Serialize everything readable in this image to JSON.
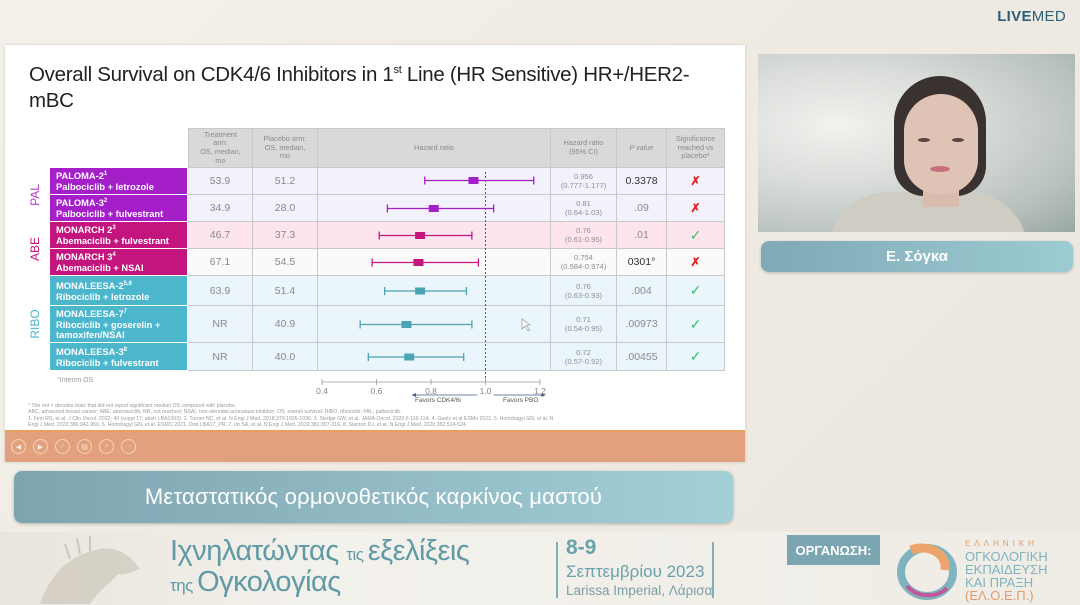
{
  "brand": {
    "bold": "LIVE",
    "regular": "MED"
  },
  "slide": {
    "title_pre": "Overall Survival on CDK4/6 Inhibitors in 1",
    "title_sup": "st",
    "title_post": " Line (HR Sensitive) HR+/HER2-mBC",
    "groups": [
      {
        "label": "PAL",
        "color": "#b43bcb"
      },
      {
        "label": "ABE",
        "color": "#c4157f"
      },
      {
        "label": "RIBO",
        "color": "#4bb6cc"
      }
    ],
    "headers": {
      "treatment": [
        "Treatment",
        "arm:",
        "OS, median,",
        "mo"
      ],
      "placebo": [
        "Placebo arm:",
        "OS, median,",
        "mo"
      ],
      "hazard": "Hazard ratio",
      "hr_ci": [
        "Hazard ratio",
        "(95% CI)"
      ],
      "pvalue": "P value",
      "significance": [
        "Significance",
        "reached vs",
        "placebo*"
      ]
    },
    "rows": [
      {
        "trial": "PALOMA-2",
        "sup": "1",
        "regimen": "Palbociclib + letrozole",
        "treatment": "53.9",
        "placebo": "51.2",
        "hr": "0.956",
        "ci": "(0.777-1.177)",
        "p": "0.3378",
        "significant": false
      },
      {
        "trial": "PALOMA-3",
        "sup": "2",
        "regimen": "Palbociclib + fulvestrant",
        "treatment": "34.9",
        "placebo": "28.0",
        "hr": "0.81",
        "ci": "(0.64-1.03)",
        "p": ".09",
        "significant": false
      },
      {
        "trial": "MONARCH 2",
        "sup": "3",
        "regimen": "Abemaciclib + fulvestrant",
        "treatment": "46.7",
        "placebo": "37.3",
        "hr": "0.76",
        "ci": "(0.61-0.95)",
        "p": ".01",
        "significant": true
      },
      {
        "trial": "MONARCH 3",
        "sup": "4",
        "regimen": "Abemaciclib + NSAI",
        "treatment": "67.1",
        "placebo": "54.5",
        "hr": "0.754",
        "ci": "(0.584-0.974)",
        "p": "0301°",
        "significant": false
      },
      {
        "trial": "MONALEESA-2",
        "sup": "5,6",
        "regimen": "Ribociclib + letrozole",
        "treatment": "63.9",
        "placebo": "51.4",
        "hr": "0.76",
        "ci": "(0.63-0.93)",
        "p": ".004",
        "significant": true
      },
      {
        "trial": "MONALEESA-7",
        "sup": "7",
        "regimen": "Ribociclib + goserelin + tamoxifen/NSAI",
        "treatment": "NR",
        "placebo": "40.9",
        "hr": "0.71",
        "ci": "(0.54-0.95)",
        "p": ".00973",
        "significant": true
      },
      {
        "trial": "MONALEESA-3",
        "sup": "8",
        "regimen": "Ribociclib + fulvestrant",
        "treatment": "NR",
        "placebo": "40.0",
        "hr": "0.72",
        "ci": "(0.57-0.92)",
        "p": ".00455",
        "significant": true
      }
    ],
    "significance_symbols": {
      "yes": "✓",
      "no": "✗"
    },
    "interim_note": "°Interim OS",
    "axis_ticks": [
      "0.4",
      "0.6",
      "0.8",
      "1.0",
      "1.2"
    ],
    "favors_left": "Favors CDK4/6i",
    "favors_right": "Favors PBO",
    "footnotes": [
      "* The red × denotes trials that did not report significant median OS compared with placebo.",
      "ABC, advanced breast cancer; ABE, abemaciclib; NR, not reached; NSAI, non-steroidal aromatase inhibitor; OS, overall survival; RIBO, ribociclib; PAL, palbociclib.",
      "1. Finn RS, et al. J Clin Oncol. 2022; 40 (suppl 17; abstr LBA1003). 2. Turner NC, et al. N Engl J Med. 2018;379:1926-1936. 3. Sledge GW, et al. JAMA Oncol. 2020;6:116-124. 4. Goetz et al ESMo 2022. 5. Hortobagyi GN, et al. N",
      "Engl J Med. 2022;386:942-950. 6. Hortobagyi GN, et al. ESMO 2021. Oral LBA17_PR. 7. Im SA, et al. N Engl J Med. 2019;381:307-316. 8. Slamon DJ, et al. N Engl J Med. 2020;382:514-524."
    ]
  },
  "chart_data": {
    "type": "forest",
    "title": "Hazard ratio",
    "xlabel": "Hazard ratio",
    "xlim": [
      0.4,
      1.2
    ],
    "x_ticks": [
      0.4,
      0.6,
      0.8,
      1.0,
      1.2
    ],
    "reference_line": 1.0,
    "annotations": [
      "Favors CDK4/6i",
      "Favors PBO"
    ],
    "categories": [
      "PALOMA-2",
      "PALOMA-3",
      "MONARCH 2",
      "MONARCH 3",
      "MONALEESA-2",
      "MONALEESA-7",
      "MONALEESA-3"
    ],
    "series": [
      {
        "name": "HR",
        "values": [
          0.956,
          0.81,
          0.76,
          0.754,
          0.76,
          0.71,
          0.72
        ]
      },
      {
        "name": "CI lower",
        "values": [
          0.777,
          0.64,
          0.61,
          0.584,
          0.63,
          0.54,
          0.57
        ]
      },
      {
        "name": "CI upper",
        "values": [
          1.177,
          1.03,
          0.95,
          0.974,
          0.93,
          0.95,
          0.92
        ]
      }
    ],
    "colors": [
      "#a51fc9",
      "#a51fc9",
      "#c4157f",
      "#c4157f",
      "#4ba3b4",
      "#4ba3b4",
      "#4ba3b4"
    ]
  },
  "toolbar": {
    "buttons": [
      {
        "name": "previous-slide-button",
        "glyph": "◀"
      },
      {
        "name": "next-slide-button",
        "glyph": "▶"
      },
      {
        "name": "pen-tool-button",
        "glyph": "∕"
      },
      {
        "name": "slides-grid-button",
        "glyph": "▤"
      },
      {
        "name": "zoom-button",
        "glyph": "⌕"
      },
      {
        "name": "more-options-button",
        "glyph": "···"
      }
    ]
  },
  "speaker": {
    "name": "Ε. Σόγκα"
  },
  "subtitle": "Μεταστατικός ορμονοθετικός καρκίνος μαστού",
  "banner": {
    "title_line1_a": "Ιχνηλατώντας ",
    "title_line1_small": "τις ",
    "title_line1_b": "εξελίξεις",
    "title_line2_small": "της ",
    "title_line2_b": "Ογκολογίας",
    "date_days": "8-9",
    "date_month": "Σεπτεμβρίου 2023",
    "venue": "Larissa Imperial, Λάρισα",
    "organizer_label": "ΟΡΓΑΝΩΣΗ:",
    "org_line0": "ΕΛΛΗΝΙΚΗ",
    "org_line1": "ΟΓΚΟΛΟΓΙΚΗ",
    "org_line2": "ΕΚΠΑΙΔΕΥΣΗ",
    "org_line3": "ΚΑΙ ΠΡΑΞΗ",
    "org_acronym": "(ΕΛ.Ο.Ε.Π.)"
  }
}
